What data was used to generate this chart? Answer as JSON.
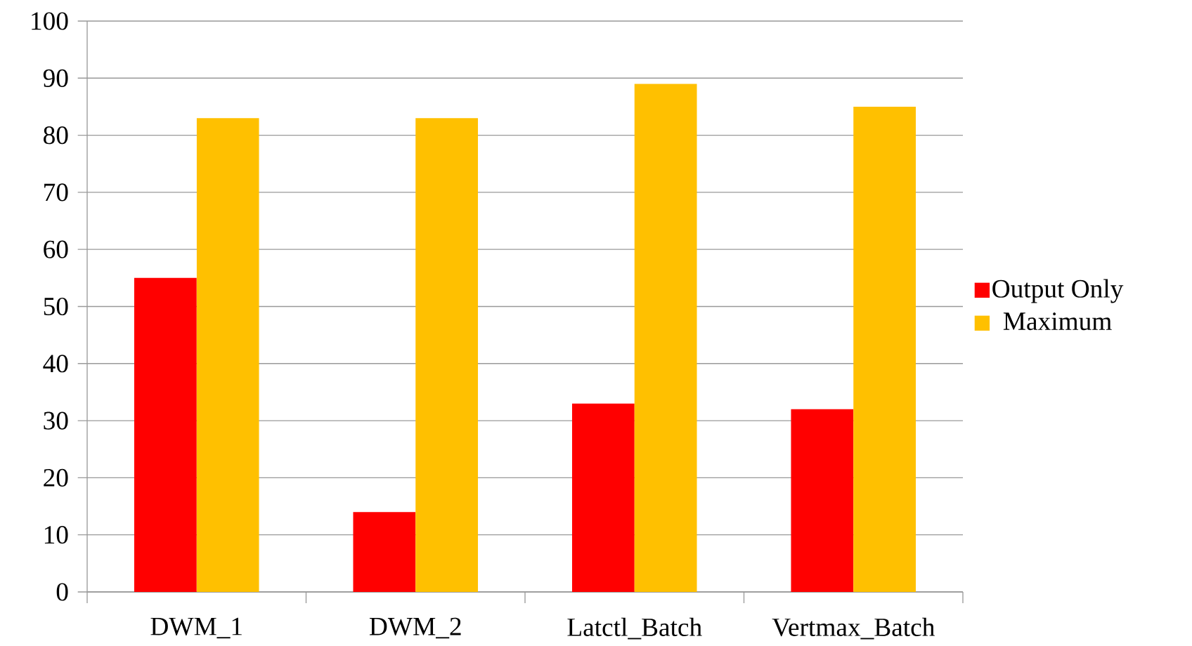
{
  "chart_data": {
    "type": "bar",
    "categories": [
      "DWM_1",
      "DWM_2",
      "Latctl_Batch",
      "Vertmax_Batch"
    ],
    "series": [
      {
        "name": "Output Only",
        "color": "#ff0000",
        "values": [
          55,
          14,
          33,
          32
        ]
      },
      {
        "name": "Maximum",
        "color": "#ffc000",
        "values": [
          83,
          83,
          89,
          85
        ]
      }
    ],
    "ylim": [
      0,
      100
    ],
    "yticks": [
      0,
      10,
      20,
      30,
      40,
      50,
      60,
      70,
      80,
      90,
      100
    ],
    "grid": "y",
    "legend": "right"
  }
}
